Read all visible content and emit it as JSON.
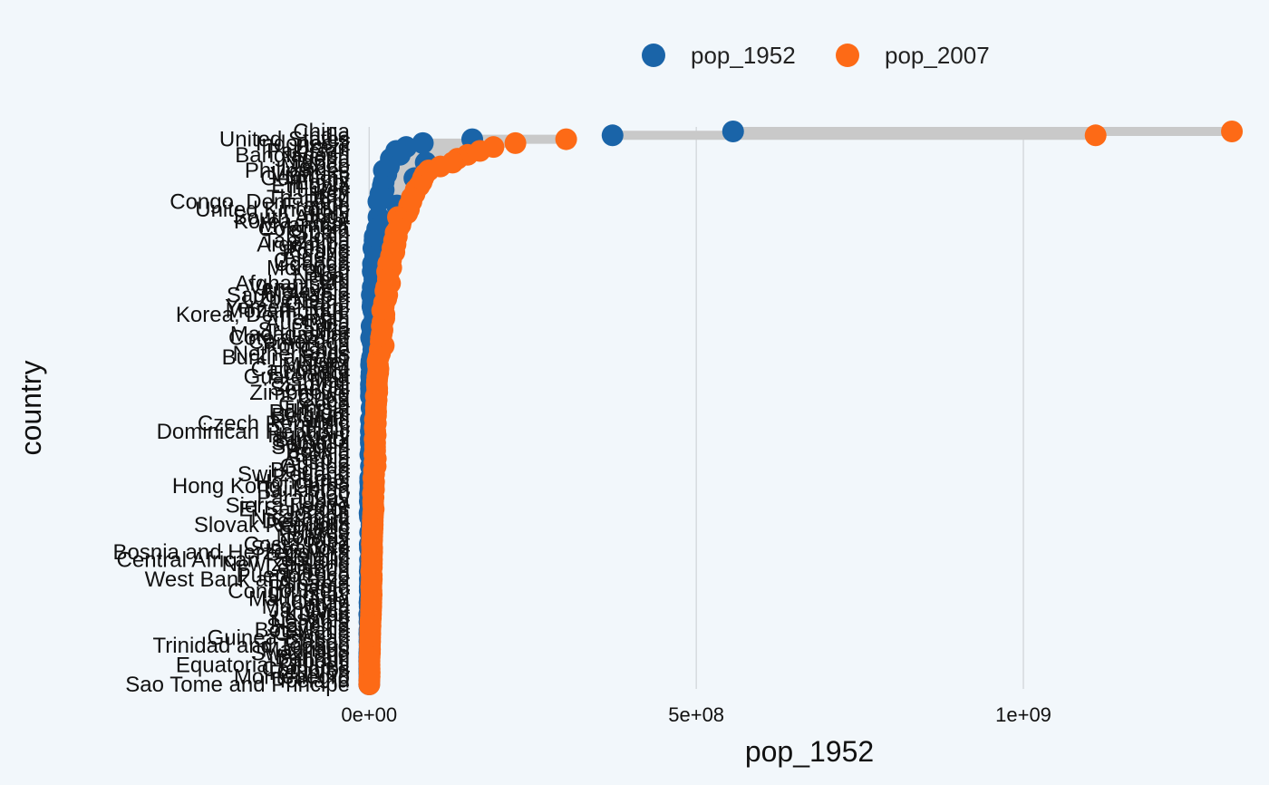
{
  "chart_data": {
    "type": "dumbbell",
    "title": "",
    "xlabel": "pop_1952",
    "ylabel": "country",
    "xlim": [
      -17000000,
      1320000000
    ],
    "x_ticks": [
      0,
      500000000,
      1000000000
    ],
    "x_tick_labels": [
      "0e+00",
      "5e+08",
      "1e+09"
    ],
    "grid": "vertical",
    "legend_position": "top",
    "series": [
      {
        "name": "pop_1952",
        "color": "#1a64a8"
      },
      {
        "name": "pop_2007",
        "color": "#fd6a16"
      }
    ],
    "countries": [
      "China",
      "India",
      "United States",
      "Indonesia",
      "Brazil",
      "Pakistan",
      "Bangladesh",
      "Nigeria",
      "Japan",
      "Mexico",
      "Philippines",
      "Vietnam",
      "Germany",
      "Egypt",
      "Ethiopia",
      "Turkey",
      "Iran",
      "Thailand",
      "Congo, Dem. Rep.",
      "France",
      "United Kingdom",
      "Italy",
      "South Africa",
      "Korea, Rep.",
      "Myanmar",
      "Colombia",
      "Spain",
      "Sudan",
      "Tanzania",
      "Argentina",
      "Kenya",
      "Poland",
      "Algeria",
      "Canada",
      "Uganda",
      "Morocco",
      "Iraq",
      "Nepal",
      "Peru",
      "Afghanistan",
      "Venezuela",
      "Malaysia",
      "Saudi Arabia",
      "Uzbekistan",
      "Ghana",
      "Yemen, Rep.",
      "Mozambique",
      "Korea, Dem. Rep.",
      "Taiwan",
      "Australia",
      "Syria",
      "Sri Lanka",
      "Madagascar",
      "Cote d'Ivoire",
      "Cameroon",
      "Romania",
      "Chile",
      "Netherlands",
      "Burkina Faso",
      "Niger",
      "Malawi",
      "Cambodia",
      "Ecuador",
      "Guatemala",
      "Mali",
      "Zambia",
      "Senegal",
      "Zimbabwe",
      "Chad",
      "Cuba",
      "Greece",
      "Tunisia",
      "Portugal",
      "Belgium",
      "Rwanda",
      "Czech Republic",
      "Haiti",
      "Dominican Republic",
      "Hungary",
      "Burundi",
      "Somalia",
      "Sweden",
      "Bolivia",
      "Benin",
      "Serbia",
      "Austria",
      "Guinea",
      "Bulgaria",
      "Switzerland",
      "Israel",
      "Honduras",
      "Hong Kong, China",
      "Tajikistan",
      "Togo",
      "Paraguay",
      "Libya",
      "Sierra Leone",
      "El Salvador",
      "Jordan",
      "Nicaragua",
      "Denmark",
      "Slovak Republic",
      "Finland",
      "Eritrea",
      "Norway",
      "Croatia",
      "Costa Rica",
      "Singapore",
      "Bosnia and Herzegovina",
      "Ireland",
      "Central African Republic",
      "New Zealand",
      "Lebanon",
      "Liberia",
      "Puerto Rico",
      "West Bank and Gaza",
      "Albania",
      "Panama",
      "Congo, Rep.",
      "Uruguay",
      "Mauritania",
      "Oman",
      "Mongolia",
      "Jamaica",
      "Kuwait",
      "Lesotho",
      "Namibia",
      "Slovenia",
      "Botswana",
      "Gambia",
      "Guinea-Bissau",
      "Gabon",
      "Trinidad and Tobago",
      "Mauritius",
      "Swaziland",
      "Bahrain",
      "Djibouti",
      "Equatorial Guinea",
      "Comoros",
      "Reunion",
      "Montenegro",
      "Iceland",
      "Sao Tome and Principe"
    ],
    "pop_1952": [
      556263527,
      372000000,
      157553000,
      82052000,
      56602560,
      41346560,
      46886859,
      33119096,
      86459025,
      30144317,
      22438691,
      26246839,
      69145952,
      22223309,
      20860941,
      22235677,
      17272000,
      21289402,
      14100005,
      42459667,
      50430000,
      47666000,
      14264935,
      20947571,
      20092996,
      12350771,
      28549870,
      8504667,
      8322925,
      17876956,
      6464046,
      25730551,
      9279525,
      14785584,
      5824797,
      9939217,
      5441766,
      9182536,
      8025700,
      8425333,
      5439568,
      6748378,
      4005677,
      6702000,
      5581001,
      4963829,
      6446316,
      8865488,
      8550362,
      8691212,
      3661549,
      7982342,
      4762912,
      2977019,
      5009067,
      16630000,
      6377619,
      10381988,
      4469979,
      3379468,
      2881765,
      4693836,
      3548753,
      3146381,
      3838168,
      2672000,
      2755589,
      3080907,
      2682462,
      6007797,
      7733250,
      3647735,
      8526050,
      8730405,
      2534927,
      9125183,
      3201488,
      2491346,
      9504000,
      2445618,
      2526994,
      7124673,
      2883315,
      1738315,
      6860147,
      6927772,
      2664249,
      7274900,
      4815000,
      1620914,
      1517453,
      2125900,
      1930000,
      1219113,
      1555876,
      1019729,
      2143249,
      2042865,
      607914,
      1165790,
      4334000,
      3558137,
      4090500,
      1438760,
      3327728,
      3882229,
      926317,
      1127000,
      2791000,
      2952156,
      1291695,
      1994794,
      1439529,
      863308,
      2227000,
      1030585,
      1282697,
      940080,
      854885,
      2252965,
      1022556,
      507833,
      800663,
      1426095,
      160000,
      748747,
      485831,
      1489518,
      442308,
      284320,
      580653,
      420702,
      662850,
      516556,
      290243,
      120447,
      63149,
      216964,
      153936,
      257700,
      413834,
      147962,
      60011
    ],
    "pop_2007": [
      1318683096,
      1110396331,
      301139947,
      223547000,
      190010647,
      169270617,
      150448339,
      135031164,
      127467972,
      108700891,
      91077287,
      85262356,
      82400996,
      80264543,
      76511887,
      71158647,
      69453570,
      65068149,
      64606759,
      61083916,
      60776238,
      58147733,
      43997828,
      49044790,
      47761980,
      44227550,
      40448191,
      42292929,
      38139640,
      40301927,
      35610177,
      38518241,
      33333216,
      33390141,
      29170398,
      33757175,
      27499638,
      28901790,
      28674757,
      31889923,
      26084662,
      24821286,
      27601038,
      26084000,
      22873338,
      22211743,
      19951656,
      23301725,
      23174294,
      20434176,
      19314747,
      20378239,
      19167654,
      18013409,
      17696293,
      22276056,
      16284741,
      16570613,
      14326203,
      12894865,
      13327079,
      14131858,
      13755680,
      12572928,
      12031795,
      11746035,
      12267493,
      12311143,
      10238807,
      11416987,
      10706290,
      10276158,
      10642836,
      10392226,
      8860588,
      10228744,
      8502814,
      9319622,
      9956108,
      8390505,
      9118773,
      9031088,
      9119152,
      8078314,
      10150265,
      8199783,
      9947814,
      7322858,
      7554661,
      6426679,
      7483763,
      6980412,
      7321000,
      5701579,
      6667147,
      6036914,
      6144562,
      6939688,
      6053193,
      5675356,
      5468120,
      5447502,
      5238460,
      4906585,
      4627926,
      4493312,
      4133884,
      4553009,
      4552198,
      4109086,
      4241874,
      4115771,
      4018332,
      3193942,
      3942491,
      4018332,
      3600523,
      3242173,
      3566028,
      3800610,
      3447496,
      3270065,
      3204897,
      2874127,
      2780132,
      2505559,
      2012649,
      2055080,
      1639131,
      1688359,
      1472041,
      1454867,
      1056608,
      1250882,
      1133066,
      708573,
      496374,
      551201,
      630689,
      798094,
      684736,
      301931,
      199579
    ]
  }
}
